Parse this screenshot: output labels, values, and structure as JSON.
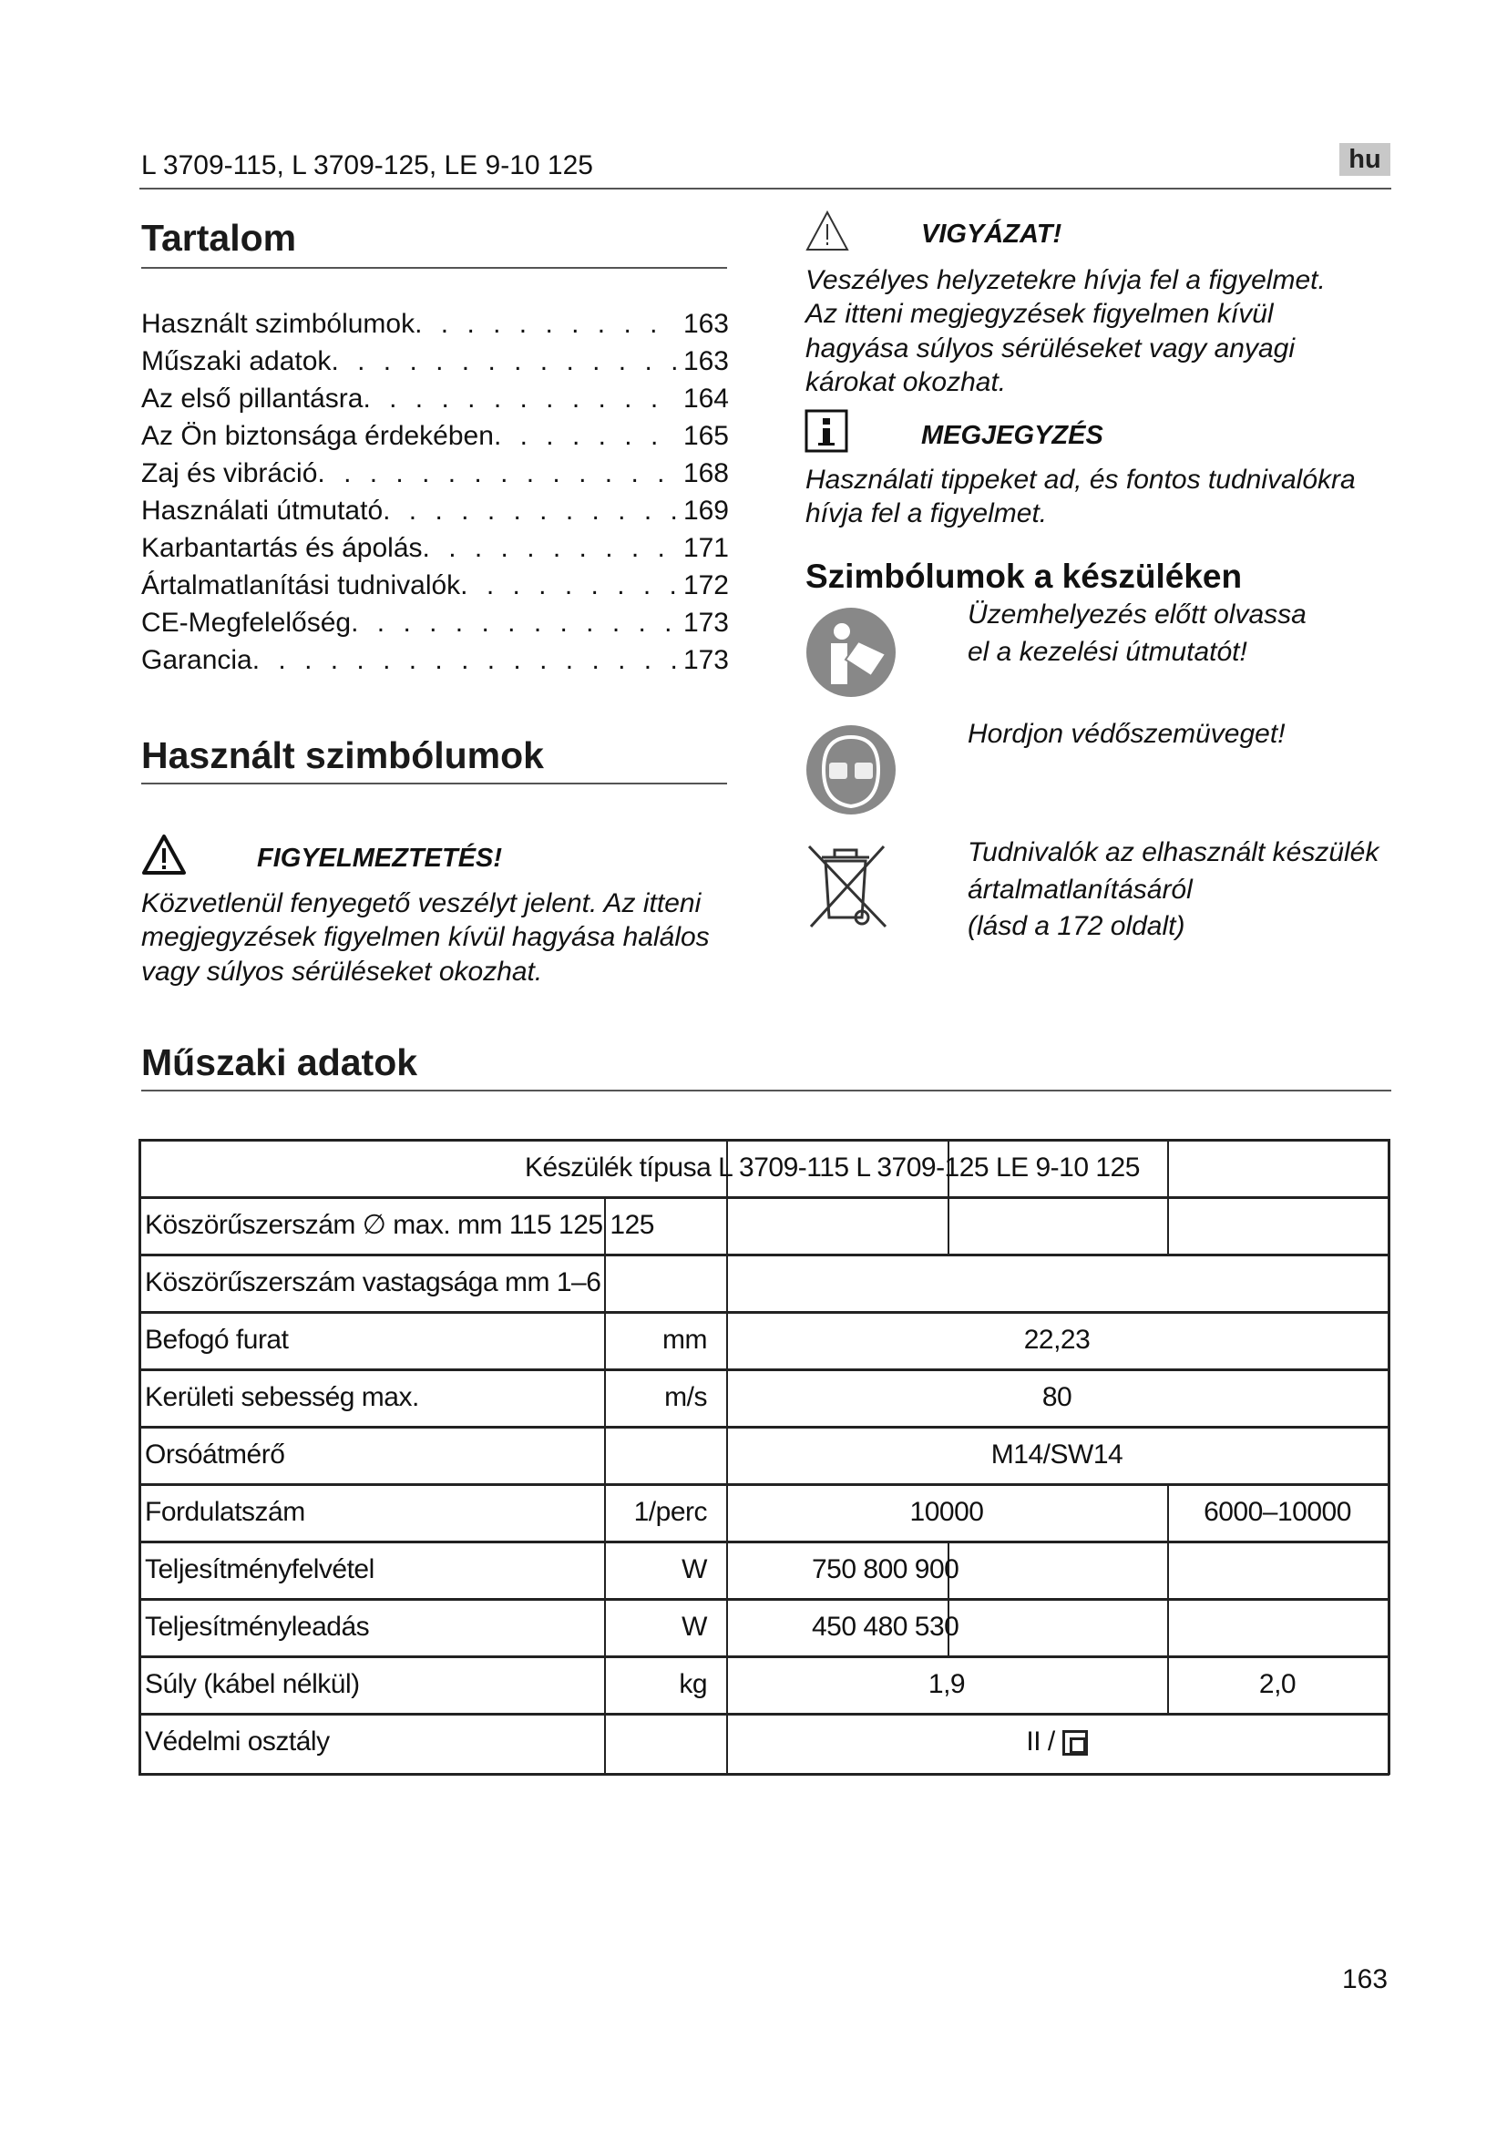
{
  "header": {
    "models": "L 3709-115, L 3709-125, LE 9-10 125",
    "language_badge": "hu"
  },
  "toc": {
    "title": "Tartalom",
    "items": [
      {
        "label": "Használt szimbólumok",
        "page": "163"
      },
      {
        "label": "Műszaki adatok",
        "page": "163"
      },
      {
        "label": "Az első pillantásra",
        "page": "164"
      },
      {
        "label": "Az Ön biztonsága érdekében",
        "page": "165"
      },
      {
        "label": "Zaj és vibráció",
        "page": "168"
      },
      {
        "label": "Használati útmutató",
        "page": "169"
      },
      {
        "label": "Karbantartás és ápolás",
        "page": "171"
      },
      {
        "label": "Ártalmatlanítási tudnivalók",
        "page": "172"
      },
      {
        "label": "CE-Megfelelőség",
        "page": "173"
      },
      {
        "label": "Garancia",
        "page": "173"
      }
    ]
  },
  "symbols_used": {
    "title": "Használt szimbólumok",
    "warning": {
      "icon": "warning-triangle-icon",
      "label": "FIGYELMEZTETÉS!",
      "lines": [
        "Közvetlenül fenyegető veszélyt jelent. Az itteni",
        "megjegyzések figyelmen kívül hagyása halálos",
        "vagy súlyos sérüléseket okozhat."
      ]
    }
  },
  "caution": {
    "icon": "warning-triangle-icon",
    "label": "VIGYÁZAT!",
    "lines": [
      "Veszélyes helyzetekre hívja fel a figyelmet.",
      "Az itteni megjegyzések figyelmen kívül",
      "hagyása súlyos sérüléseket vagy anyagi",
      "károkat okozhat."
    ]
  },
  "note": {
    "icon": "info-icon",
    "label": "MEGJEGYZÉS",
    "lines": [
      "Használati tippeket ad, és fontos tudnivalókra",
      "hívja fel a figyelmet."
    ]
  },
  "device_symbols": {
    "title": "Szimbólumok a készüléken",
    "items": [
      {
        "icon": "read-manual-icon",
        "lines": [
          "Üzemhelyezés előtt olvassa",
          "el a kezelési útmutatót!"
        ]
      },
      {
        "icon": "safety-goggles-icon",
        "lines": [
          "Hordjon védőszemüveget!"
        ]
      },
      {
        "icon": "crossed-bin-icon",
        "lines": [
          "Tudnivalók az elhasznált készülék",
          "ártalmatlanításáról",
          "(lásd a 172 oldalt)"
        ]
      }
    ]
  },
  "specs": {
    "title": "Műszaki adatok",
    "header_row": "Készülék típusa L 3709-115 L 3709-125 LE 9-10 125",
    "disc_diameter_row": "Köszörűszerszám ∅ max. mm 115 125 125",
    "disc_thickness_row": "Köszörűszerszám vastagsága mm 1–6",
    "rows": [
      {
        "label": "Befogó furat",
        "unit": "mm",
        "value": "22,23"
      },
      {
        "label": "Kerületi sebesség max.",
        "unit": "m/s",
        "value": "80"
      },
      {
        "label": "Orsóátmérő",
        "unit": "",
        "value": "M14/SW14"
      },
      {
        "label": "Fordulatszám",
        "unit": "1/perc",
        "value": "10000",
        "value2": "6000–10000"
      },
      {
        "label": "Teljesítményfelvétel",
        "unit": "W",
        "value": "750 800 900"
      },
      {
        "label": "Teljesítményleadás",
        "unit": "W",
        "value": "450 480 530"
      },
      {
        "label": "Súly (kábel nélkül)",
        "unit": "kg",
        "value": "1,9",
        "value2": "2,0"
      },
      {
        "label": "Védelmi osztály",
        "unit": "",
        "value": "II / "
      }
    ]
  },
  "page_number": "163"
}
